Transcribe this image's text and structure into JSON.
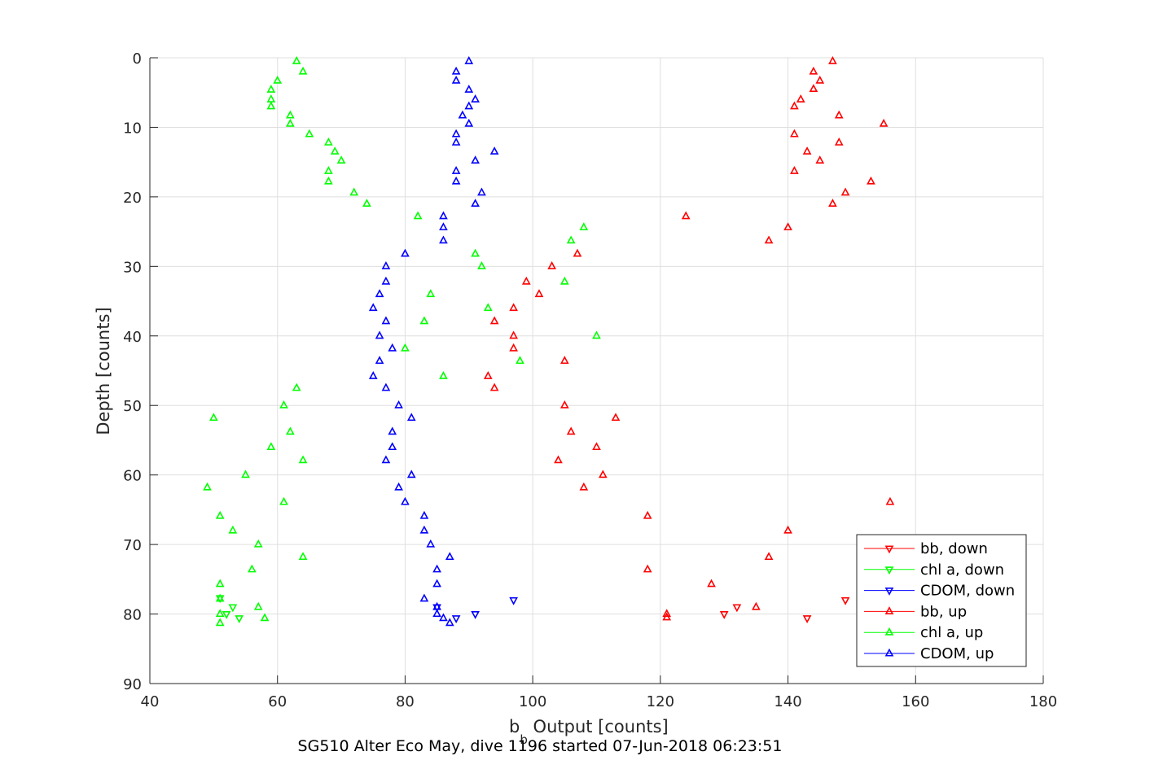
{
  "chart_data": {
    "type": "scatter",
    "xlabel_main": "b",
    "xlabel_sub": "b",
    "xlabel_rest": " Output [counts]",
    "ylabel": "Depth [counts]",
    "caption": "SG510 Alter Eco May, dive 1196 started 07-Jun-2018 06:23:51",
    "xlim": [
      40,
      180
    ],
    "ylim": [
      0,
      90
    ],
    "y_reversed": true,
    "xticks": [
      40,
      60,
      80,
      100,
      120,
      140,
      160,
      180
    ],
    "yticks": [
      0,
      10,
      20,
      30,
      40,
      50,
      60,
      70,
      80,
      90
    ],
    "grid": true,
    "legend_position": "bottom-right",
    "series": [
      {
        "name": "bb, down",
        "color": "#ff0000",
        "marker": "triangle-down",
        "points": [
          [
            149,
            78
          ],
          [
            132,
            79
          ],
          [
            130,
            80
          ],
          [
            143,
            80.6
          ]
        ]
      },
      {
        "name": "chl a, down",
        "color": "#00ff00",
        "marker": "triangle-down",
        "points": [
          [
            51,
            77.7
          ],
          [
            53,
            79
          ],
          [
            52,
            80
          ],
          [
            54,
            80.6
          ]
        ]
      },
      {
        "name": "CDOM, down",
        "color": "#0000ff",
        "marker": "triangle-down",
        "points": [
          [
            97,
            78
          ],
          [
            85,
            79
          ],
          [
            91,
            80
          ],
          [
            88,
            80.6
          ]
        ]
      },
      {
        "name": "bb, up",
        "color": "#ff0000",
        "marker": "triangle-up",
        "points": [
          [
            147,
            0.5
          ],
          [
            144,
            2
          ],
          [
            145,
            3.3
          ],
          [
            144,
            4.5
          ],
          [
            142,
            6
          ],
          [
            141,
            7
          ],
          [
            148,
            8.3
          ],
          [
            155,
            9.5
          ],
          [
            141,
            11
          ],
          [
            148,
            12.2
          ],
          [
            143,
            13.5
          ],
          [
            145,
            14.8
          ],
          [
            141,
            16.3
          ],
          [
            153,
            17.8
          ],
          [
            149,
            19.4
          ],
          [
            147,
            21
          ],
          [
            124,
            22.8
          ],
          [
            140,
            24.4
          ],
          [
            137,
            26.3
          ],
          [
            107,
            28.2
          ],
          [
            103,
            30
          ],
          [
            99,
            32.2
          ],
          [
            101,
            34
          ],
          [
            97,
            36
          ],
          [
            94,
            37.9
          ],
          [
            97,
            40
          ],
          [
            97,
            41.8
          ],
          [
            105,
            43.6
          ],
          [
            93,
            45.8
          ],
          [
            94,
            47.5
          ],
          [
            105,
            50
          ],
          [
            113,
            51.8
          ],
          [
            106,
            53.8
          ],
          [
            110,
            56
          ],
          [
            104,
            57.9
          ],
          [
            111,
            60
          ],
          [
            108,
            61.8
          ],
          [
            156,
            63.9
          ],
          [
            118,
            65.9
          ],
          [
            140,
            68
          ],
          [
            137,
            71.8
          ],
          [
            118,
            73.6
          ],
          [
            128,
            75.7
          ],
          [
            135,
            79
          ],
          [
            121,
            80
          ],
          [
            121,
            80.5
          ]
        ]
      },
      {
        "name": "chl a, up",
        "color": "#00ff00",
        "marker": "triangle-up",
        "points": [
          [
            63,
            0.5
          ],
          [
            64,
            2
          ],
          [
            60,
            3.3
          ],
          [
            59,
            4.6
          ],
          [
            59,
            6
          ],
          [
            59,
            7
          ],
          [
            62,
            8.3
          ],
          [
            62,
            9.5
          ],
          [
            65,
            11
          ],
          [
            68,
            12.2
          ],
          [
            69,
            13.5
          ],
          [
            70,
            14.8
          ],
          [
            68,
            16.3
          ],
          [
            68,
            17.8
          ],
          [
            72,
            19.4
          ],
          [
            74,
            21
          ],
          [
            82,
            22.8
          ],
          [
            108,
            24.4
          ],
          [
            106,
            26.3
          ],
          [
            91,
            28.2
          ],
          [
            92,
            30
          ],
          [
            105,
            32.2
          ],
          [
            84,
            34
          ],
          [
            93,
            36
          ],
          [
            83,
            37.9
          ],
          [
            110,
            40
          ],
          [
            80,
            41.8
          ],
          [
            98,
            43.6
          ],
          [
            86,
            45.8
          ],
          [
            63,
            47.5
          ],
          [
            61,
            50
          ],
          [
            50,
            51.8
          ],
          [
            62,
            53.8
          ],
          [
            59,
            56
          ],
          [
            64,
            57.9
          ],
          [
            55,
            60
          ],
          [
            49,
            61.8
          ],
          [
            61,
            63.9
          ],
          [
            51,
            65.9
          ],
          [
            53,
            68
          ],
          [
            57,
            70
          ],
          [
            64,
            71.8
          ],
          [
            56,
            73.6
          ],
          [
            51,
            75.7
          ],
          [
            51,
            77.8
          ],
          [
            57,
            79
          ],
          [
            51,
            80
          ],
          [
            58,
            80.6
          ],
          [
            51,
            81.3
          ]
        ]
      },
      {
        "name": "CDOM, up",
        "color": "#0000ff",
        "marker": "triangle-up",
        "points": [
          [
            90,
            0.5
          ],
          [
            88,
            2
          ],
          [
            88,
            3.3
          ],
          [
            90,
            4.6
          ],
          [
            91,
            6
          ],
          [
            90,
            7
          ],
          [
            89,
            8.3
          ],
          [
            90,
            9.5
          ],
          [
            88,
            11
          ],
          [
            88,
            12.2
          ],
          [
            94,
            13.5
          ],
          [
            91,
            14.8
          ],
          [
            88,
            16.3
          ],
          [
            88,
            17.8
          ],
          [
            92,
            19.4
          ],
          [
            91,
            21
          ],
          [
            86,
            22.8
          ],
          [
            86,
            24.4
          ],
          [
            86,
            26.3
          ],
          [
            80,
            28.2
          ],
          [
            77,
            30
          ],
          [
            77,
            32.2
          ],
          [
            76,
            34
          ],
          [
            75,
            36
          ],
          [
            77,
            37.9
          ],
          [
            76,
            40
          ],
          [
            78,
            41.8
          ],
          [
            76,
            43.6
          ],
          [
            75,
            45.8
          ],
          [
            77,
            47.5
          ],
          [
            79,
            50
          ],
          [
            81,
            51.8
          ],
          [
            78,
            53.8
          ],
          [
            78,
            56
          ],
          [
            77,
            57.9
          ],
          [
            81,
            60
          ],
          [
            79,
            61.8
          ],
          [
            80,
            63.9
          ],
          [
            83,
            65.9
          ],
          [
            83,
            68
          ],
          [
            84,
            70
          ],
          [
            87,
            71.8
          ],
          [
            85,
            73.6
          ],
          [
            85,
            75.7
          ],
          [
            83,
            77.8
          ],
          [
            85,
            79
          ],
          [
            85,
            80
          ],
          [
            86,
            80.6
          ],
          [
            87,
            81.3
          ]
        ]
      }
    ]
  }
}
